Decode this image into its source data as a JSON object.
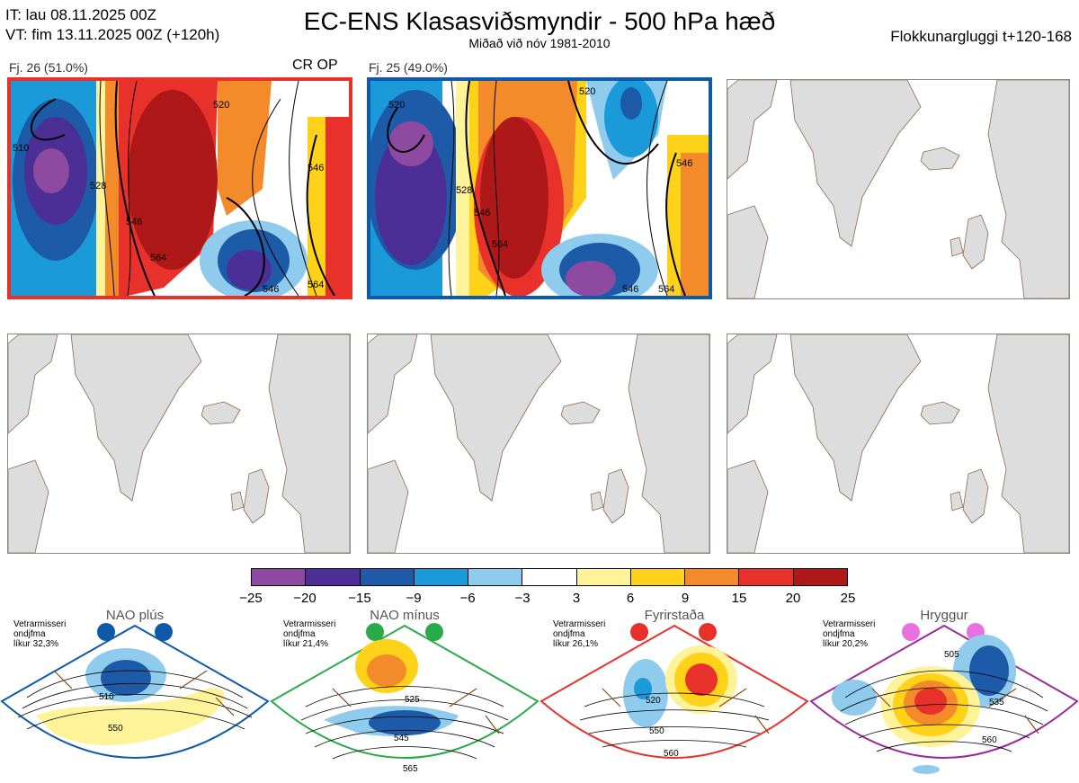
{
  "header": {
    "it": "IT: lau 08.11.2025 00Z",
    "vt": "VT: fim 13.11.2025 00Z  (+120h)",
    "title": "EC-ENS Klasasviðsmyndir - 500 hPa hæð",
    "subtitle": "Miðað við nóv 1981-2010",
    "window": "Flokkunargluggi t+120-168"
  },
  "panels": [
    {
      "label": "Fj. 26 (51.0%)",
      "tag": "CR OP",
      "frame_color": "#e8312a",
      "contour_labels": [
        "520",
        "510",
        "528",
        "546",
        "546",
        "564",
        "546",
        "564"
      ]
    },
    {
      "label": "Fj. 25 (49.0%)",
      "tag": "",
      "frame_color": "#0f5aa8",
      "contour_labels": [
        "520",
        "520",
        "528",
        "546",
        "564",
        "546",
        "546",
        "564"
      ]
    }
  ],
  "colorbar": {
    "colors": [
      "#8e4aa0",
      "#4b2e96",
      "#1d5aa8",
      "#1a9ad9",
      "#8ecbed",
      "#ffffff",
      "#fff39a",
      "#ffd21a",
      "#f38b2b",
      "#e8312a",
      "#ae1818"
    ],
    "ticks": [
      "−25",
      "−20",
      "−15",
      "−9",
      "−6",
      "−3",
      "3",
      "6",
      "9",
      "15",
      "20",
      "25"
    ]
  },
  "regimes": [
    {
      "name": "NAO plús",
      "info": [
        "Vetrarmisseri",
        "ondjfma",
        "líkur 32,3%"
      ],
      "color": "#0f5aa8",
      "labels": [
        "510",
        "550"
      ]
    },
    {
      "name": "NAO mínus",
      "info": [
        "Vetrarmisseri",
        "ondjfma",
        "líkur 21,4%"
      ],
      "color": "#2aaa4a",
      "labels": [
        "525",
        "545",
        "565"
      ]
    },
    {
      "name": "Fyrirstaða",
      "info": [
        "Vetrarmisseri",
        "ondjfma",
        "líkur 26,1%"
      ],
      "color": "#e8312a",
      "labels": [
        "520",
        "550",
        "560"
      ]
    },
    {
      "name": "Hryggur",
      "info": [
        "Vetrarmisseri",
        "ondjfma",
        "líkur 20,2%"
      ],
      "color": "#9b2a9a",
      "labels": [
        "505",
        "535",
        "560"
      ]
    }
  ]
}
